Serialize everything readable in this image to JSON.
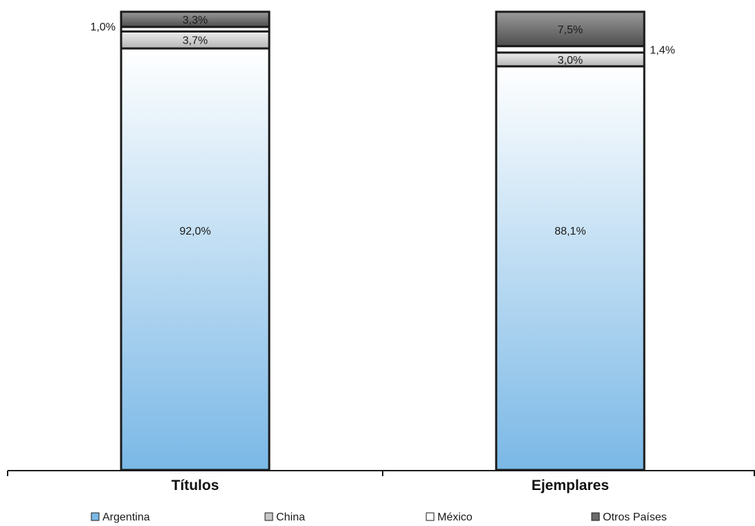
{
  "chart_data": {
    "type": "bar",
    "stacked": true,
    "normalized_percent": true,
    "categories": [
      "Títulos",
      "Ejemplares"
    ],
    "series": [
      {
        "name": "Argentina",
        "values": [
          92.0,
          88.1
        ],
        "labels": [
          "92,0%",
          "88,1%"
        ],
        "color": "#7ab8e6",
        "color_top": "#ffffff"
      },
      {
        "name": "China",
        "values": [
          3.7,
          3.0
        ],
        "labels": [
          "3,7%",
          "3,0%"
        ],
        "color": "#c8c8c8"
      },
      {
        "name": "México",
        "values": [
          1.0,
          1.4
        ],
        "labels": [
          "1,0%",
          "1,4%"
        ],
        "color": "#ffffff"
      },
      {
        "name": "Otros Países",
        "values": [
          3.3,
          7.5
        ],
        "labels": [
          "3,3%",
          "7,5%"
        ],
        "color": "#6b6b6b"
      }
    ],
    "ylim": [
      0,
      100
    ],
    "grid": false,
    "legend_position": "bottom",
    "title": "",
    "xlabel": "",
    "ylabel": ""
  }
}
